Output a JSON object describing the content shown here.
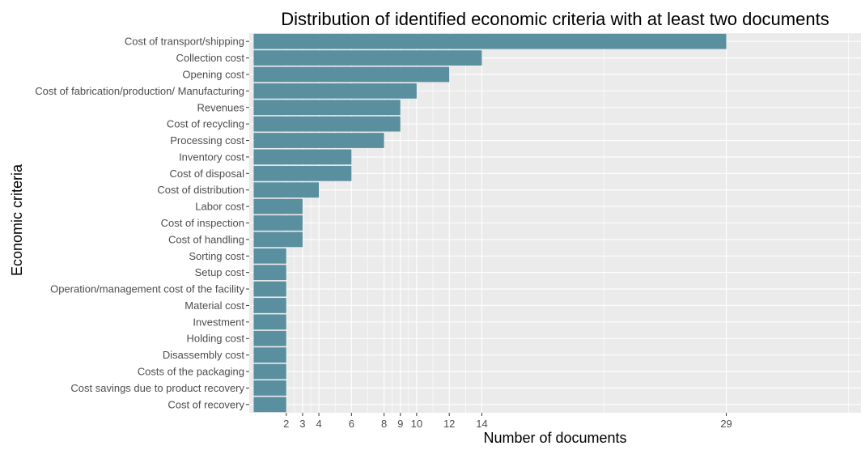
{
  "chart_data": {
    "type": "bar",
    "orientation": "horizontal",
    "title": "Distribution of identified economic criteria with at least two documents",
    "xlabel": "Number of documents",
    "ylabel": "Economic criteria",
    "categories": [
      "Cost of transport/shipping",
      "Collection cost",
      "Opening cost",
      "Cost of fabrication/production/ Manufacturing",
      "Revenues",
      "Cost of recycling",
      "Processing cost",
      "Inventory cost",
      "Cost of disposal",
      "Cost of distribution",
      "Labor cost",
      "Cost of inspection",
      "Cost of handling",
      "Sorting cost",
      "Setup cost",
      "Operation/management cost of the facility",
      "Material cost",
      "Investment",
      "Holding cost",
      "Disassembly cost",
      "Costs of the packaging",
      "Cost savings due to product recovery",
      "Cost of recovery"
    ],
    "values": [
      29,
      14,
      12,
      10,
      9,
      9,
      8,
      6,
      6,
      4,
      3,
      3,
      3,
      2,
      2,
      2,
      2,
      2,
      2,
      2,
      2,
      2,
      2
    ],
    "xticks": [
      2,
      3,
      4,
      6,
      8,
      9,
      10,
      12,
      14,
      29
    ],
    "xlim": [
      0,
      36.2
    ],
    "grid": true,
    "colors": {
      "bar": "#5a8fa0",
      "panel": "#ebebeb",
      "grid": "#ffffff",
      "text": "#000000",
      "tick_text": "#4d4d4d"
    }
  }
}
